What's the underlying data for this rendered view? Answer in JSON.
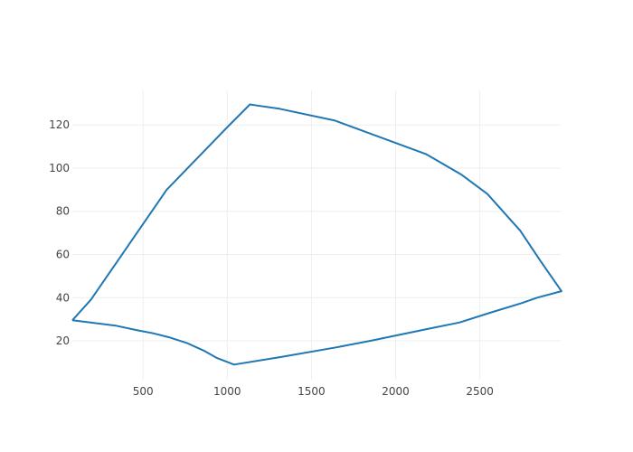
{
  "chart_data": {
    "type": "line",
    "title": "",
    "xlabel": "",
    "ylabel": "",
    "xlim": [
      80,
      2980
    ],
    "ylim": [
      2,
      136
    ],
    "x_ticks": [
      500,
      1000,
      1500,
      2000,
      2500
    ],
    "y_ticks": [
      20,
      40,
      60,
      80,
      100,
      120
    ],
    "grid": true,
    "legend": "none",
    "series": [
      {
        "color": "#1f77b4",
        "x": [
          80,
          190,
          640,
          1020,
          1135,
          1175,
          1310,
          1640,
          2180,
          2390,
          2545,
          2740,
          2860,
          2985,
          2840,
          2750,
          2560,
          2380,
          2190,
          1850,
          1650,
          1320,
          1040,
          940,
          860,
          760,
          660,
          560,
          460,
          340,
          80
        ],
        "y": [
          29.5,
          39,
          90,
          120.5,
          129.5,
          129,
          127.5,
          122,
          106.5,
          97,
          88,
          71,
          57,
          43,
          40,
          37.5,
          33,
          28.5,
          25.5,
          20,
          17,
          12.5,
          9,
          12,
          15.5,
          19,
          21.5,
          23.5,
          25,
          27,
          29.5
        ]
      }
    ]
  }
}
